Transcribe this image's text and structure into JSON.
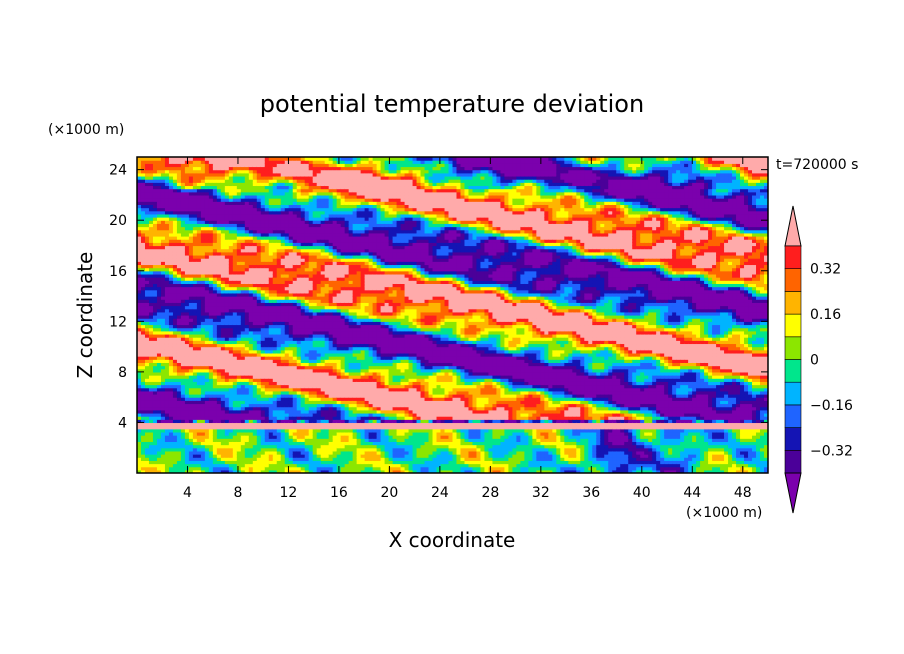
{
  "chart_data": {
    "type": "heatmap",
    "title": "potential temperature deviation",
    "xlabel": "X coordinate",
    "ylabel": "Z coordinate",
    "x_unit": "(×1000 m)",
    "y_unit": "(×1000 m)",
    "time_label": "t=720000 s",
    "xlim": [
      0,
      50
    ],
    "ylim": [
      0,
      25
    ],
    "x_ticks": [
      4,
      8,
      12,
      16,
      20,
      24,
      28,
      32,
      36,
      40,
      44,
      48
    ],
    "y_ticks": [
      4,
      8,
      12,
      16,
      20,
      24
    ],
    "colorbar": {
      "levels": [
        -0.4,
        -0.32,
        -0.24,
        -0.16,
        -0.08,
        0,
        0.08,
        0.16,
        0.24,
        0.32,
        0.4
      ],
      "labels": [
        "0.32",
        "0.16",
        "0",
        "−0.16",
        "−0.32"
      ],
      "label_values": [
        0.32,
        0.16,
        0,
        -0.16,
        -0.32
      ],
      "colors": [
        "#7b00ad",
        "#4b0099",
        "#1414b4",
        "#1f64ff",
        "#00b4ff",
        "#00e68c",
        "#8ce600",
        "#ffff00",
        "#ffb400",
        "#ff6400",
        "#ff1e1e",
        "#ffaaaa"
      ]
    },
    "grid": false
  }
}
